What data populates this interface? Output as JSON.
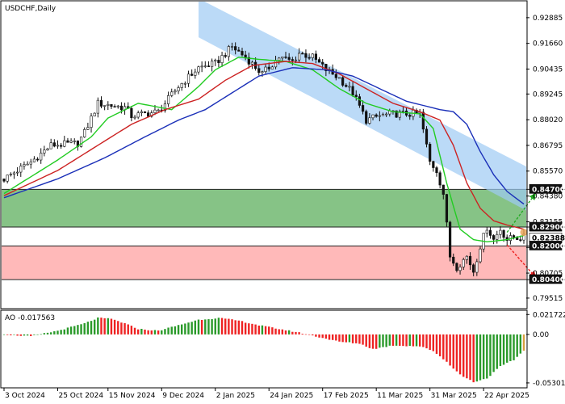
{
  "chart_data": {
    "type": "candlestick",
    "title": "USDCHF,Daily",
    "price_ylim": [
      0.7905,
      0.9365
    ],
    "price_ticks": [
      0.92885,
      0.9166,
      0.90435,
      0.89245,
      0.8802,
      0.86795,
      0.8557,
      0.8438,
      0.83155,
      0.8193,
      0.80705,
      0.79515
    ],
    "price_tick_labels": [
      "0.92885",
      "0.91660",
      "0.90435",
      "0.89245",
      "0.88020",
      "0.86795",
      "0.85570",
      "0.84380",
      "0.83155",
      "0.81930",
      "0.80705",
      "0.79515"
    ],
    "x_labels": [
      "3 Oct 2024",
      "25 Oct 2024",
      "15 Nov 2024",
      "9 Dec 2024",
      "2 Jan 2025",
      "24 Jan 2025",
      "17 Feb 2025",
      "11 Mar 2025",
      "31 Mar 2025",
      "22 Apr 2025"
    ],
    "x_label_index": [
      0,
      16,
      31,
      47,
      63,
      79,
      95,
      111,
      127,
      143
    ],
    "last_index": 155,
    "resistance_zone": {
      "from": 0.829,
      "to": 0.847,
      "color": "#80c080"
    },
    "support_zone": {
      "from": 0.804,
      "to": 0.82,
      "color": "#ffb5b5"
    },
    "level_labels": [
      {
        "value": 0.847,
        "text": "0.84700",
        "bg": "#111111",
        "fg": "#ffffff"
      },
      {
        "value": 0.829,
        "text": "0.82900",
        "bg": "#111111",
        "fg": "#ffffff"
      },
      {
        "value": 0.82388,
        "text": "0.82388",
        "bg": "#ffffff",
        "fg": "#000000"
      },
      {
        "value": 0.82,
        "text": "0.82000",
        "bg": "#111111",
        "fg": "#ffffff"
      },
      {
        "value": 0.804,
        "text": "0.80400",
        "bg": "#111111",
        "fg": "#ffffff"
      }
    ],
    "channel": {
      "color": "#9ecbf4",
      "upper": [
        [
          58,
          0.938
        ],
        [
          158,
          0.856
        ]
      ],
      "lower": [
        [
          58,
          0.9195
        ],
        [
          158,
          0.835
        ]
      ]
    },
    "forecast_arrows": [
      {
        "from": [
          150,
          0.8265
        ],
        "to": [
          158,
          0.844
        ],
        "color": "#22aa22"
      },
      {
        "from": [
          150,
          0.8205
        ],
        "to": [
          158,
          0.806
        ],
        "color": "#ee2222"
      }
    ],
    "price_points": [
      [
        0,
        0.852
      ],
      [
        8,
        0.86
      ],
      [
        14,
        0.868
      ],
      [
        22,
        0.869
      ],
      [
        24,
        0.874
      ],
      [
        28,
        0.888
      ],
      [
        32,
        0.887
      ],
      [
        36,
        0.886
      ],
      [
        38,
        0.882
      ],
      [
        46,
        0.884
      ],
      [
        52,
        0.896
      ],
      [
        58,
        0.905
      ],
      [
        63,
        0.907
      ],
      [
        68,
        0.915
      ],
      [
        72,
        0.91
      ],
      [
        77,
        0.902
      ],
      [
        82,
        0.91
      ],
      [
        86,
        0.908
      ],
      [
        88,
        0.912
      ],
      [
        92,
        0.91
      ],
      [
        96,
        0.904
      ],
      [
        100,
        0.9
      ],
      [
        104,
        0.893
      ],
      [
        108,
        0.88
      ],
      [
        112,
        0.882
      ],
      [
        116,
        0.883
      ],
      [
        124,
        0.883
      ],
      [
        127,
        0.86
      ],
      [
        129,
        0.856
      ],
      [
        131,
        0.845
      ],
      [
        133,
        0.815
      ],
      [
        135,
        0.81
      ],
      [
        138,
        0.815
      ],
      [
        140,
        0.808
      ],
      [
        142,
        0.82
      ],
      [
        144,
        0.829
      ],
      [
        146,
        0.823
      ],
      [
        148,
        0.828
      ],
      [
        150,
        0.823
      ],
      [
        152,
        0.824
      ],
      [
        155,
        0.8239
      ]
    ],
    "ma_fast": {
      "color": "#22cc22",
      "points": [
        [
          0,
          0.845
        ],
        [
          16,
          0.861
        ],
        [
          26,
          0.872
        ],
        [
          31,
          0.881
        ],
        [
          40,
          0.888
        ],
        [
          50,
          0.885
        ],
        [
          58,
          0.896
        ],
        [
          63,
          0.904
        ],
        [
          70,
          0.91
        ],
        [
          76,
          0.909
        ],
        [
          84,
          0.908
        ],
        [
          92,
          0.904
        ],
        [
          100,
          0.895
        ],
        [
          108,
          0.888
        ],
        [
          116,
          0.884
        ],
        [
          124,
          0.883
        ],
        [
          128,
          0.876
        ],
        [
          132,
          0.85
        ],
        [
          136,
          0.828
        ],
        [
          140,
          0.823
        ],
        [
          144,
          0.822
        ],
        [
          150,
          0.823
        ],
        [
          155,
          0.825
        ]
      ]
    },
    "ma_mid": {
      "color": "#cc2222",
      "points": [
        [
          0,
          0.844
        ],
        [
          16,
          0.856
        ],
        [
          28,
          0.868
        ],
        [
          38,
          0.878
        ],
        [
          48,
          0.885
        ],
        [
          58,
          0.89
        ],
        [
          66,
          0.899
        ],
        [
          74,
          0.906
        ],
        [
          84,
          0.908
        ],
        [
          92,
          0.907
        ],
        [
          100,
          0.902
        ],
        [
          108,
          0.895
        ],
        [
          116,
          0.888
        ],
        [
          124,
          0.884
        ],
        [
          130,
          0.88
        ],
        [
          134,
          0.868
        ],
        [
          138,
          0.85
        ],
        [
          142,
          0.838
        ],
        [
          146,
          0.832
        ],
        [
          150,
          0.83
        ],
        [
          155,
          0.828
        ]
      ]
    },
    "ma_slow": {
      "color": "#1a2fb8",
      "points": [
        [
          0,
          0.843
        ],
        [
          16,
          0.852
        ],
        [
          30,
          0.862
        ],
        [
          42,
          0.872
        ],
        [
          52,
          0.88
        ],
        [
          60,
          0.885
        ],
        [
          68,
          0.893
        ],
        [
          76,
          0.901
        ],
        [
          86,
          0.905
        ],
        [
          96,
          0.904
        ],
        [
          104,
          0.901
        ],
        [
          112,
          0.895
        ],
        [
          120,
          0.889
        ],
        [
          130,
          0.885
        ],
        [
          134,
          0.884
        ],
        [
          138,
          0.878
        ],
        [
          142,
          0.865
        ],
        [
          146,
          0.854
        ],
        [
          150,
          0.846
        ],
        [
          155,
          0.84
        ]
      ]
    },
    "ao": {
      "label": "AO -0.017563",
      "ylim": [
        -0.0575,
        0.0255
      ],
      "ticks": [
        0.021722,
        0.0,
        -0.053013
      ],
      "tick_labels": [
        "0.021722",
        "0.00",
        "-0.053013"
      ],
      "up_color": "#2a9a2a",
      "down_color": "#ee2222",
      "current_color": "#d8a040",
      "anchors": [
        [
          0,
          0.0
        ],
        [
          8,
          -0.002
        ],
        [
          16,
          0.004
        ],
        [
          24,
          0.012
        ],
        [
          28,
          0.018
        ],
        [
          32,
          0.017
        ],
        [
          36,
          0.012
        ],
        [
          40,
          0.006
        ],
        [
          46,
          0.004
        ],
        [
          52,
          0.01
        ],
        [
          58,
          0.016
        ],
        [
          64,
          0.018
        ],
        [
          70,
          0.015
        ],
        [
          76,
          0.01
        ],
        [
          82,
          0.006
        ],
        [
          88,
          0.002
        ],
        [
          94,
          -0.003
        ],
        [
          100,
          -0.008
        ],
        [
          106,
          -0.01
        ],
        [
          110,
          -0.016
        ],
        [
          116,
          -0.012
        ],
        [
          124,
          -0.013
        ],
        [
          128,
          -0.018
        ],
        [
          132,
          -0.03
        ],
        [
          136,
          -0.044
        ],
        [
          140,
          -0.052
        ],
        [
          144,
          -0.048
        ],
        [
          148,
          -0.035
        ],
        [
          152,
          -0.028
        ],
        [
          155,
          -0.0176
        ]
      ]
    }
  }
}
